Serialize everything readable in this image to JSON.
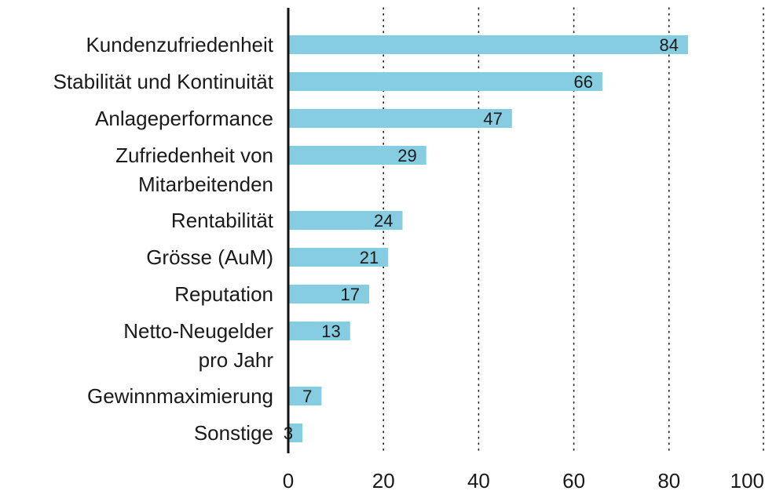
{
  "chart_data": {
    "type": "bar",
    "orientation": "horizontal",
    "categories": [
      [
        "Kundenzufriedenheit"
      ],
      [
        "Stabilität und Kontinuität"
      ],
      [
        "Anlageperformance"
      ],
      [
        "Zufriedenheit von",
        "Mitarbeitenden"
      ],
      [
        "Rentabilität"
      ],
      [
        "Grösse (AuM)"
      ],
      [
        "Reputation"
      ],
      [
        "Netto-Neugelder",
        "pro Jahr"
      ],
      [
        "Gewinnmaximierung"
      ],
      [
        "Sonstige"
      ]
    ],
    "values": [
      84,
      66,
      47,
      29,
      24,
      21,
      17,
      13,
      7,
      3
    ],
    "xlim": [
      0,
      100
    ],
    "xticks": [
      0,
      20,
      40,
      60,
      80,
      100
    ],
    "grid": "vertical dotted",
    "colors": {
      "bar": "#87cde2",
      "axis": "#111111",
      "grid": "#222222"
    }
  }
}
